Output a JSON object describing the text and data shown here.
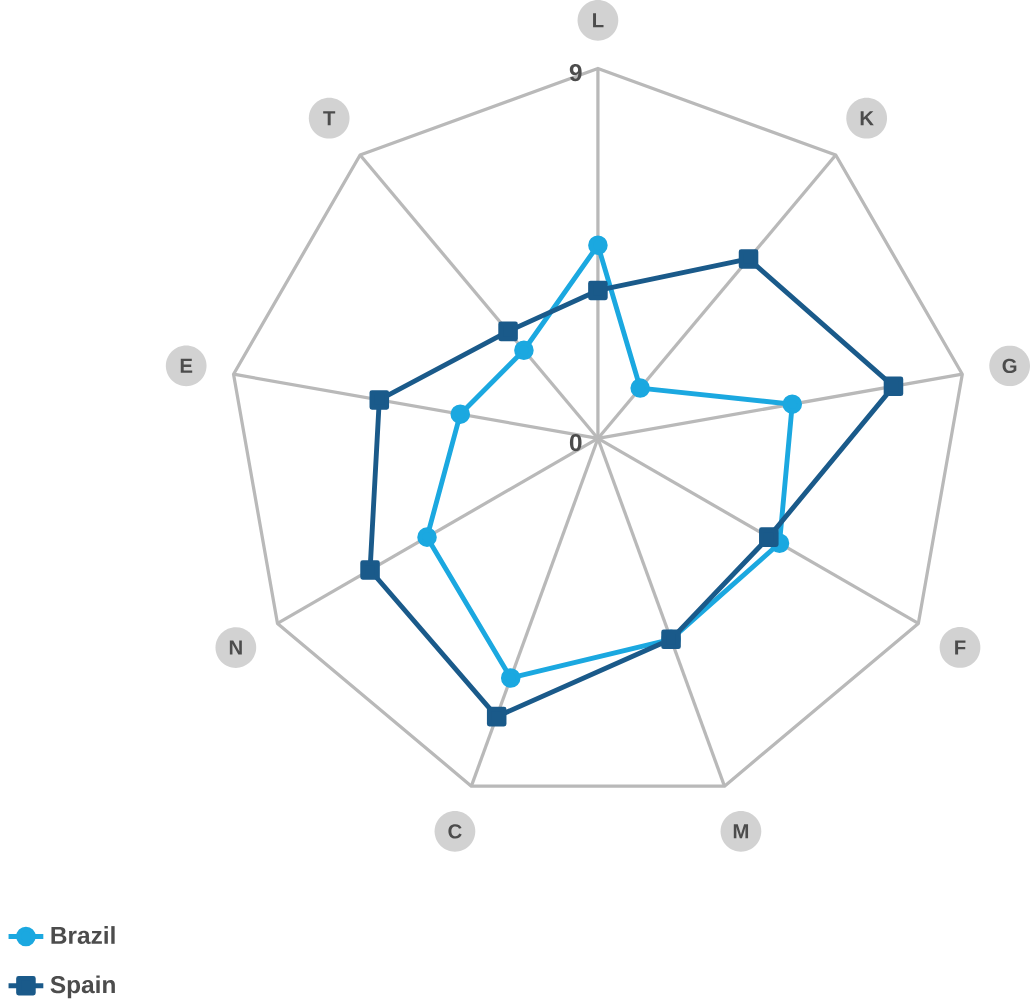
{
  "chart_data": {
    "type": "radar",
    "categories": [
      "L",
      "K",
      "G",
      "F",
      "M",
      "C",
      "N",
      "E",
      "T"
    ],
    "series": [
      {
        "name": "Brazil",
        "color": "#1ba8e0",
        "marker": "circle",
        "values": [
          4.7,
          1.6,
          4.8,
          5.1,
          5.2,
          6.2,
          4.8,
          3.4,
          2.8
        ]
      },
      {
        "name": "Spain",
        "color": "#1a5a8a",
        "marker": "square",
        "values": [
          3.6,
          5.7,
          7.3,
          4.8,
          5.2,
          7.2,
          6.4,
          5.4,
          3.4
        ]
      }
    ],
    "ylim": [
      0,
      9
    ],
    "yticks": [
      0,
      9
    ],
    "grid": true,
    "legend": "bottom left"
  }
}
